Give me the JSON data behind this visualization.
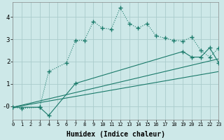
{
  "bg_color": "#cde8e8",
  "grid_color": "#aacccc",
  "line_color": "#1a7a6a",
  "xlim": [
    0,
    23
  ],
  "ylim": [
    -0.6,
    4.65
  ],
  "yticks": [
    0,
    1,
    2,
    3,
    4
  ],
  "ytick_labels": [
    "-0",
    "1",
    "2",
    "3",
    "4"
  ],
  "xticks": [
    0,
    1,
    2,
    3,
    4,
    5,
    6,
    7,
    8,
    9,
    10,
    11,
    12,
    13,
    14,
    15,
    16,
    17,
    18,
    19,
    20,
    21,
    22,
    23
  ],
  "xlabel": "Humidex (Indice chaleur)",
  "line1_x": [
    0,
    1,
    3,
    4,
    6,
    7,
    8,
    9,
    10,
    11,
    12,
    13,
    14,
    15,
    16,
    17,
    18,
    19,
    20,
    21,
    22,
    23
  ],
  "line1_y": [
    -0.05,
    -0.1,
    -0.05,
    1.55,
    1.95,
    2.95,
    2.95,
    3.8,
    3.5,
    3.45,
    4.42,
    3.7,
    3.5,
    3.7,
    3.15,
    3.05,
    2.95,
    2.92,
    3.1,
    2.5,
    2.2,
    2.6
  ],
  "line2_x": [
    0,
    3,
    4,
    7,
    19,
    20,
    21,
    22,
    23
  ],
  "line2_y": [
    -0.05,
    -0.05,
    -0.42,
    1.02,
    2.45,
    2.2,
    2.2,
    2.62,
    1.95
  ],
  "line3_x": [
    0,
    23
  ],
  "line3_y": [
    -0.05,
    1.55
  ],
  "line4_x": [
    0,
    23
  ],
  "line4_y": [
    -0.05,
    2.12
  ]
}
